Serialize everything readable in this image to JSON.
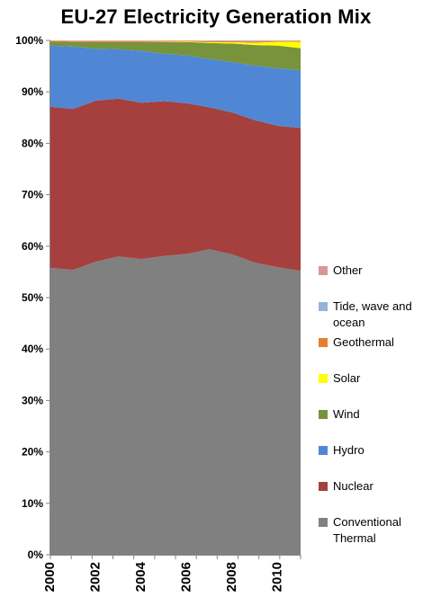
{
  "chart_data": {
    "type": "area",
    "stacked": true,
    "title": "EU-27 Electricity Generation Mix",
    "xlabel": "",
    "ylabel": "",
    "x": [
      2000,
      2001,
      2002,
      2003,
      2004,
      2005,
      2006,
      2007,
      2008,
      2009,
      2010,
      2011
    ],
    "x_ticks": [
      "2000",
      "2002",
      "2004",
      "2006",
      "2008",
      "2010"
    ],
    "x_tick_values": [
      2000,
      2002,
      2004,
      2006,
      2008,
      2010
    ],
    "y_ticks": [
      "0%",
      "10%",
      "20%",
      "30%",
      "40%",
      "50%",
      "60%",
      "70%",
      "80%",
      "90%",
      "100%"
    ],
    "y_tick_values": [
      0,
      10,
      20,
      30,
      40,
      50,
      60,
      70,
      80,
      90,
      100
    ],
    "ylim": [
      0,
      100
    ],
    "xlim": [
      2000,
      2011
    ],
    "grid": false,
    "legend_position": "right",
    "series": [
      {
        "name": "Conventional Thermal",
        "color": "#808080",
        "values": [
          55.8,
          55.4,
          57.0,
          58.0,
          57.5,
          58.1,
          58.5,
          59.4,
          58.4,
          56.8,
          55.9,
          55.2
        ]
      },
      {
        "name": "Nuclear",
        "color": "#A5403E",
        "values": [
          31.3,
          31.3,
          31.3,
          30.7,
          30.4,
          30.1,
          29.3,
          27.6,
          27.6,
          27.7,
          27.5,
          27.8
        ]
      },
      {
        "name": "Hydro",
        "color": "#4F87D5",
        "values": [
          11.9,
          12.1,
          10.1,
          9.6,
          10.1,
          9.2,
          9.3,
          9.4,
          9.8,
          10.6,
          11.2,
          11.2
        ]
      },
      {
        "name": "Wind",
        "color": "#77933C",
        "values": [
          0.8,
          0.9,
          1.3,
          1.4,
          1.7,
          2.3,
          2.6,
          3.1,
          3.6,
          4.0,
          4.4,
          4.3
        ]
      },
      {
        "name": "Solar",
        "color": "#FFFF00",
        "values": [
          0.0,
          0.0,
          0.0,
          0.0,
          0.0,
          0.05,
          0.1,
          0.15,
          0.25,
          0.45,
          0.75,
          1.25
        ]
      },
      {
        "name": "Geothermal",
        "color": "#E57E2E",
        "values": [
          0.15,
          0.15,
          0.15,
          0.15,
          0.15,
          0.15,
          0.15,
          0.15,
          0.15,
          0.15,
          0.15,
          0.15
        ]
      },
      {
        "name": "Tide, wave and ocean",
        "color": "#95B3D7",
        "values": [
          0.02,
          0.02,
          0.02,
          0.02,
          0.02,
          0.02,
          0.02,
          0.02,
          0.02,
          0.02,
          0.02,
          0.02
        ]
      },
      {
        "name": "Other",
        "color": "#D99694",
        "values": [
          0.03,
          0.13,
          0.13,
          0.13,
          0.13,
          0.08,
          0.03,
          0.18,
          0.18,
          0.28,
          0.08,
          0.08
        ]
      }
    ],
    "legend_order": [
      "Other",
      "Tide, wave and ocean",
      "Geothermal",
      "Solar",
      "Wind",
      "Hydro",
      "Nuclear",
      "Conventional Thermal"
    ]
  }
}
